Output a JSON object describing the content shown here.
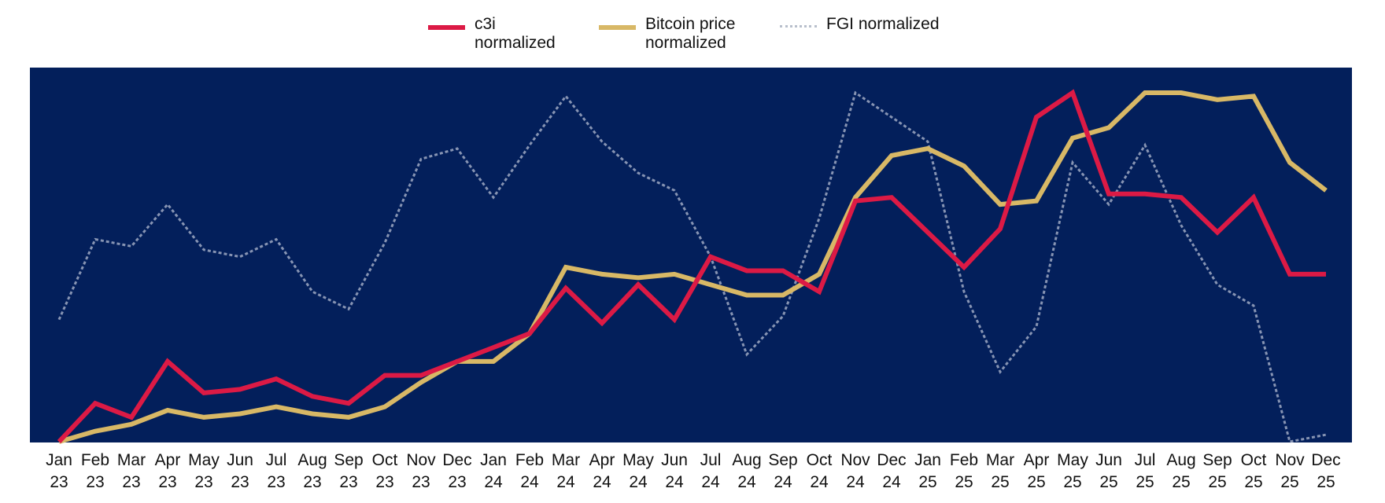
{
  "colors": {
    "background": "#031f5b",
    "c3i": "#dc1a45",
    "bitcoin": "#d8b866",
    "fgi": "#8e9bb8",
    "guide": "#6a7ea8"
  },
  "legend": {
    "c3i_line1": "c3i",
    "c3i_line2": "normalized",
    "btc_line1": "Bitcoin price",
    "btc_line2": "normalized",
    "fgi_line1": "FGI normalized"
  },
  "chart_data": {
    "type": "line",
    "title": "",
    "xlabel": "",
    "ylabel": "",
    "ylim": [
      0,
      1
    ],
    "grid": "vertical drop lines at each month",
    "legend_position": "top-center",
    "categories": [
      [
        "Jan",
        "23"
      ],
      [
        "Feb",
        "23"
      ],
      [
        "Mar",
        "23"
      ],
      [
        "Apr",
        "23"
      ],
      [
        "May",
        "23"
      ],
      [
        "Jun",
        "23"
      ],
      [
        "Jul",
        "23"
      ],
      [
        "Aug",
        "23"
      ],
      [
        "Sep",
        "23"
      ],
      [
        "Oct",
        "23"
      ],
      [
        "Nov",
        "23"
      ],
      [
        "Dec",
        "23"
      ],
      [
        "Jan",
        "24"
      ],
      [
        "Feb",
        "24"
      ],
      [
        "Mar",
        "24"
      ],
      [
        "Apr",
        "24"
      ],
      [
        "May",
        "24"
      ],
      [
        "Jun",
        "24"
      ],
      [
        "Jul",
        "24"
      ],
      [
        "Aug",
        "24"
      ],
      [
        "Sep",
        "24"
      ],
      [
        "Oct",
        "24"
      ],
      [
        "Nov",
        "24"
      ],
      [
        "Dec",
        "24"
      ],
      [
        "Jan",
        "25"
      ],
      [
        "Feb",
        "25"
      ],
      [
        "Mar",
        "25"
      ],
      [
        "Apr",
        "25"
      ],
      [
        "May",
        "25"
      ],
      [
        "Jun",
        "25"
      ],
      [
        "Jul",
        "25"
      ],
      [
        "Aug",
        "25"
      ],
      [
        "Sep",
        "25"
      ],
      [
        "Oct",
        "25"
      ],
      [
        "Nov",
        "25"
      ],
      [
        "Dec",
        "25"
      ]
    ],
    "series": [
      {
        "name": "c3i normalized",
        "key": "c3i",
        "style": "solid",
        "values": [
          0.0,
          0.11,
          0.07,
          0.23,
          0.14,
          0.15,
          0.18,
          0.13,
          0.11,
          0.19,
          0.19,
          0.23,
          0.27,
          0.31,
          0.44,
          0.34,
          0.45,
          0.35,
          0.53,
          0.49,
          0.49,
          0.43,
          0.69,
          0.7,
          0.6,
          0.5,
          0.61,
          0.93,
          1.0,
          0.71,
          0.71,
          0.7,
          0.6,
          0.7,
          0.48,
          0.48
        ]
      },
      {
        "name": "Bitcoin price normalized",
        "key": "bitcoin",
        "style": "solid",
        "values": [
          0.0,
          0.03,
          0.05,
          0.09,
          0.07,
          0.08,
          0.1,
          0.08,
          0.07,
          0.1,
          0.17,
          0.23,
          0.23,
          0.31,
          0.5,
          0.48,
          0.47,
          0.48,
          0.45,
          0.42,
          0.42,
          0.48,
          0.7,
          0.82,
          0.84,
          0.79,
          0.68,
          0.69,
          0.87,
          0.9,
          1.0,
          1.0,
          0.98,
          0.99,
          0.8,
          0.72
        ]
      },
      {
        "name": "FGI normalized",
        "key": "fgi",
        "style": "dotted",
        "values": [
          0.35,
          0.58,
          0.56,
          0.68,
          0.55,
          0.53,
          0.58,
          0.43,
          0.38,
          0.57,
          0.81,
          0.84,
          0.7,
          0.85,
          0.99,
          0.86,
          0.77,
          0.72,
          0.53,
          0.25,
          0.36,
          0.64,
          1.0,
          0.93,
          0.86,
          0.43,
          0.2,
          0.33,
          0.8,
          0.68,
          0.85,
          0.62,
          0.45,
          0.39,
          0.0,
          0.02
        ]
      }
    ]
  }
}
